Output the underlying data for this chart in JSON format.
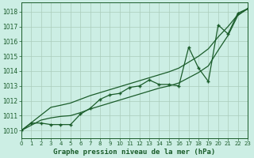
{
  "xlabel": "Graphe pression niveau de la mer (hPa)",
  "background_color": "#cceee4",
  "grid_color": "#aaccbb",
  "line_color": "#1a5c2a",
  "x_values": [
    0,
    1,
    2,
    3,
    4,
    5,
    6,
    7,
    8,
    9,
    10,
    11,
    12,
    13,
    14,
    15,
    16,
    17,
    18,
    19,
    20,
    21,
    22,
    23
  ],
  "y_main": [
    1010.0,
    1010.5,
    1010.5,
    1010.4,
    1010.4,
    1010.4,
    1011.1,
    1011.5,
    1012.1,
    1012.4,
    1012.5,
    1012.9,
    1013.0,
    1013.4,
    1013.1,
    1013.1,
    1013.0,
    1015.6,
    1014.2,
    1013.3,
    1017.1,
    1016.5,
    1017.9,
    1018.2
  ],
  "y_trend1": [
    1010.0,
    1010.52,
    1011.04,
    1011.56,
    1011.7,
    1011.85,
    1012.1,
    1012.35,
    1012.55,
    1012.75,
    1012.95,
    1013.15,
    1013.35,
    1013.55,
    1013.75,
    1013.95,
    1014.2,
    1014.6,
    1015.0,
    1015.5,
    1016.3,
    1017.0,
    1017.8,
    1018.2
  ],
  "y_trend2": [
    1010.0,
    1010.35,
    1010.7,
    1010.85,
    1010.95,
    1011.0,
    1011.2,
    1011.45,
    1011.65,
    1011.85,
    1012.05,
    1012.25,
    1012.45,
    1012.65,
    1012.85,
    1013.0,
    1013.2,
    1013.55,
    1013.9,
    1014.35,
    1015.4,
    1016.4,
    1017.75,
    1018.2
  ],
  "ylim": [
    1009.5,
    1018.6
  ],
  "xlim": [
    0,
    23
  ],
  "yticks": [
    1010,
    1011,
    1012,
    1013,
    1014,
    1015,
    1016,
    1017,
    1018
  ],
  "xticks": [
    0,
    1,
    2,
    3,
    4,
    5,
    6,
    7,
    8,
    9,
    10,
    11,
    12,
    13,
    14,
    15,
    16,
    17,
    18,
    19,
    20,
    21,
    22,
    23
  ],
  "ytick_fontsize": 5.5,
  "xtick_fontsize": 5.0,
  "xlabel_fontsize": 6.5
}
